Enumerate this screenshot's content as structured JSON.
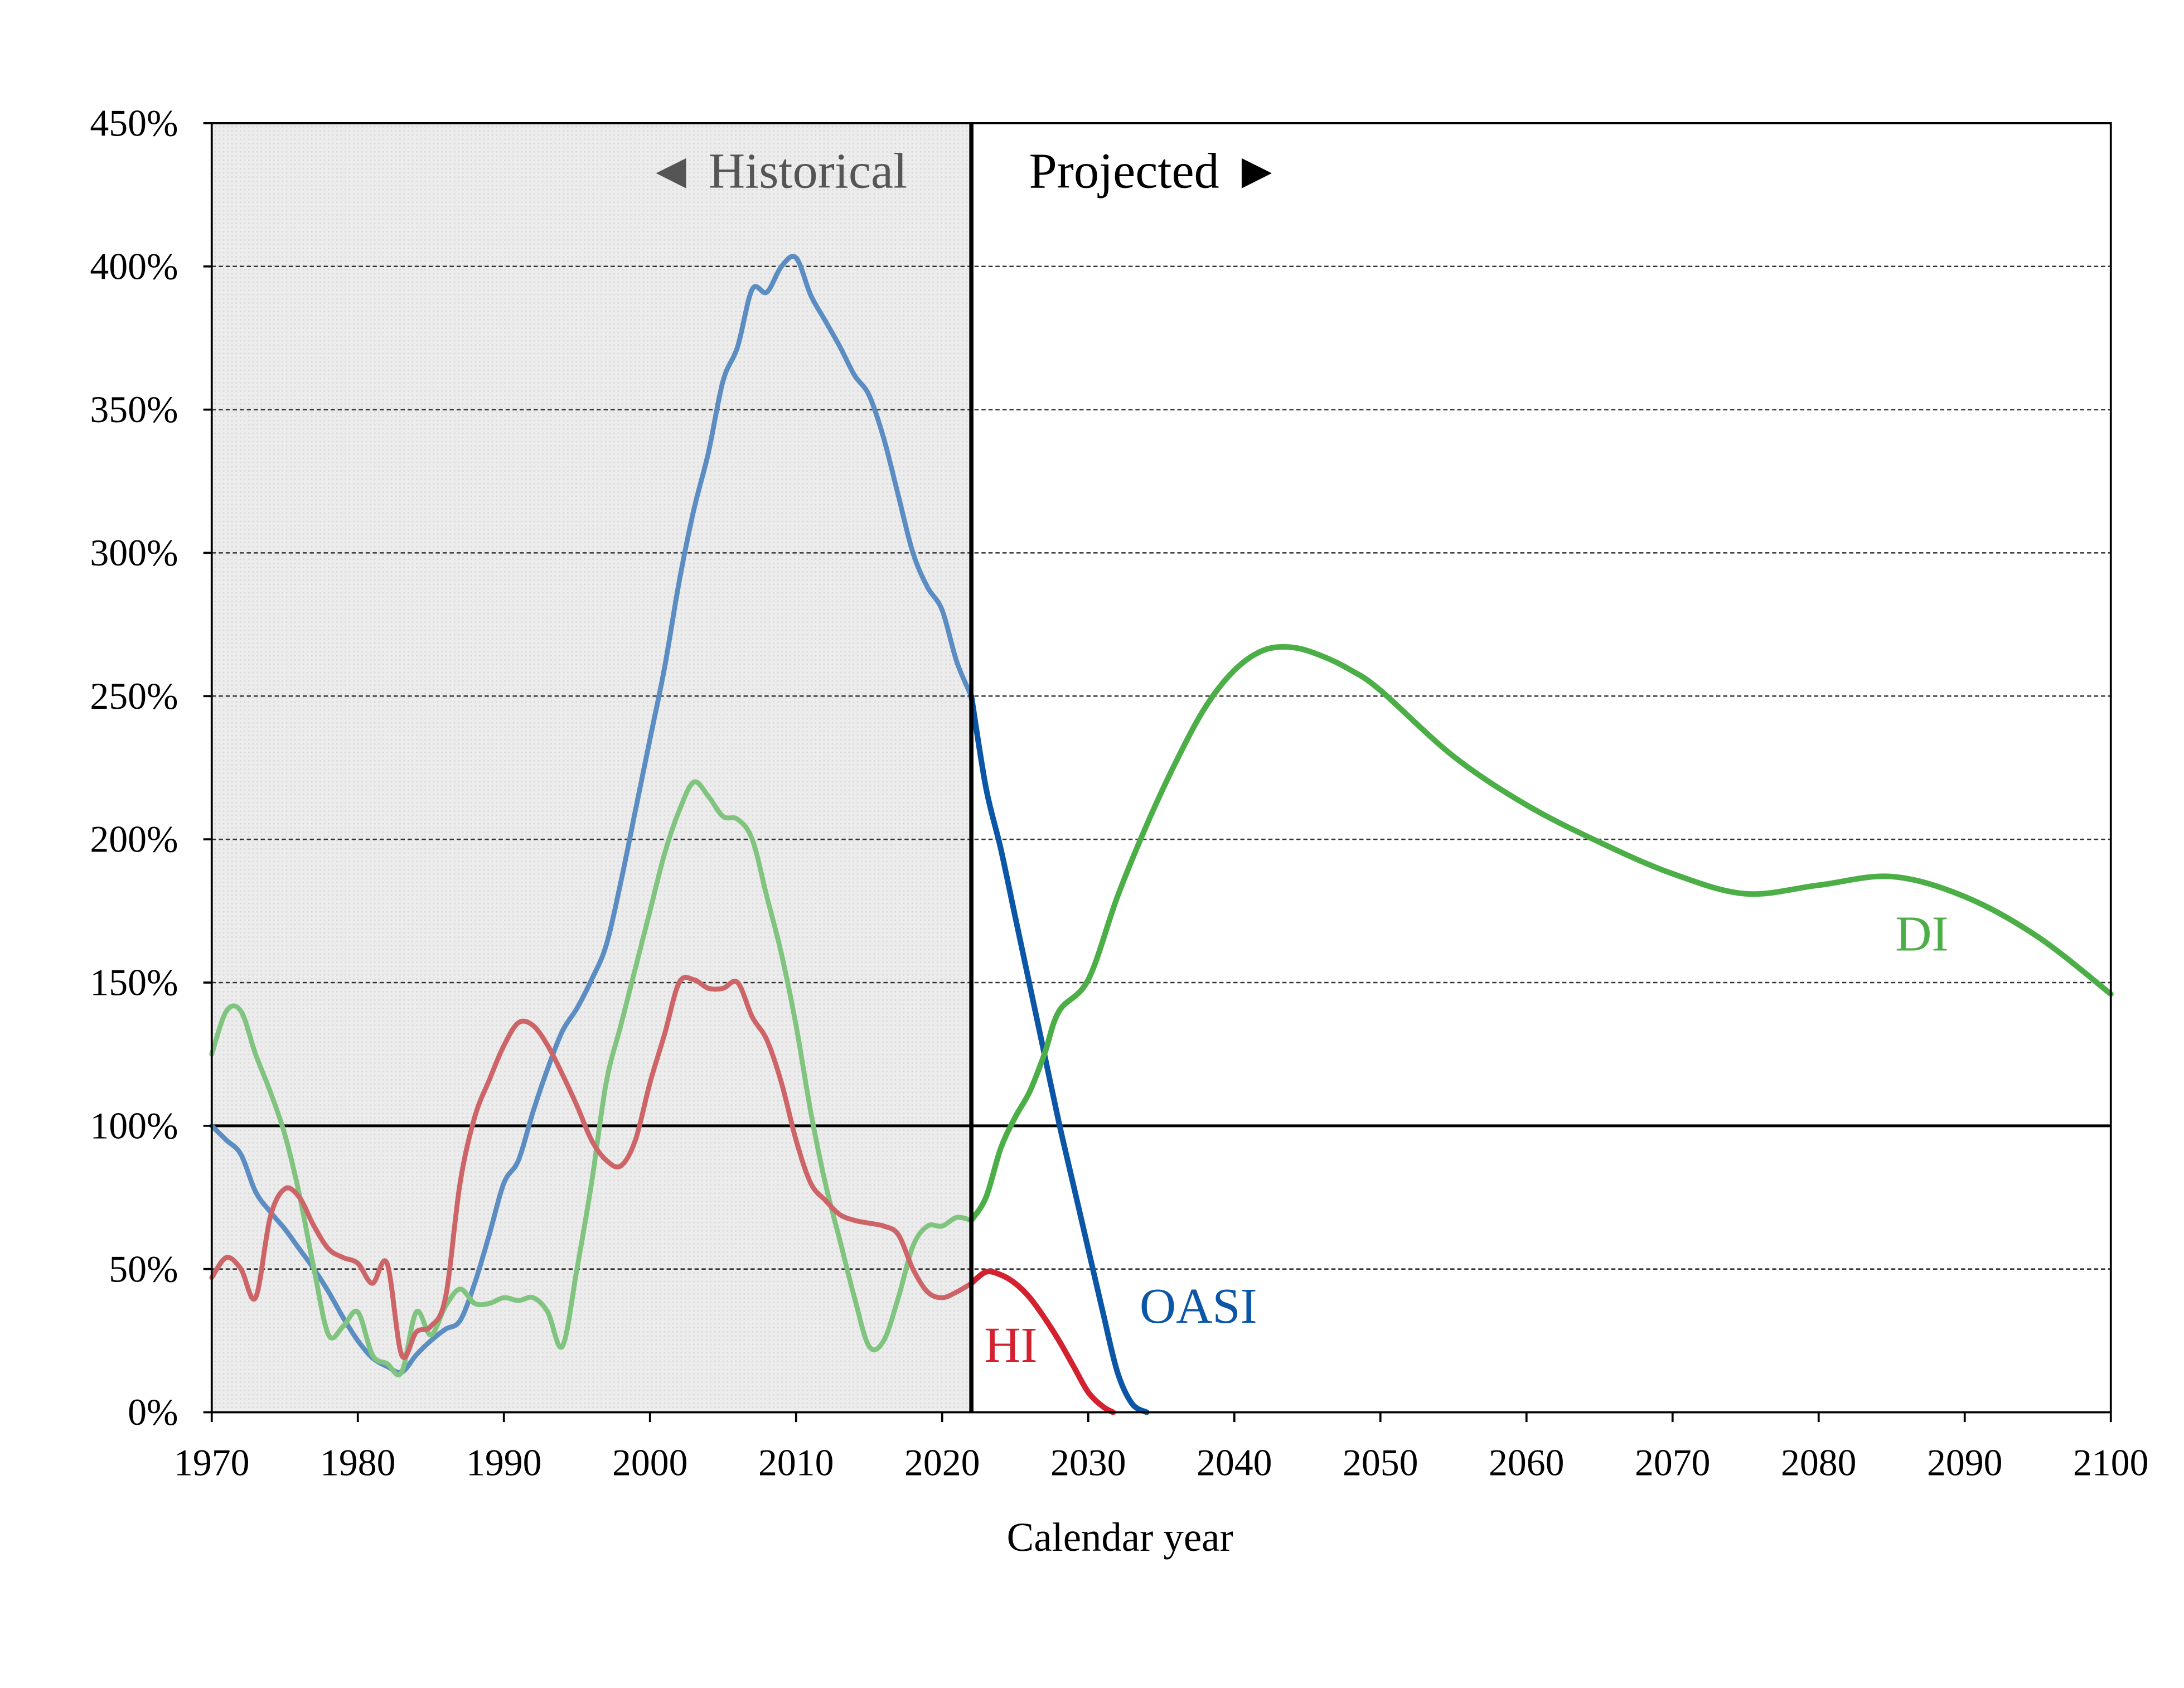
{
  "chart_data": {
    "type": "line",
    "xlabel": "Calendar year",
    "ylabel": "",
    "xlim": [
      1970,
      2100
    ],
    "ylim": [
      0,
      450
    ],
    "x_ticks": [
      "1970",
      "1980",
      "1990",
      "2000",
      "2010",
      "2020",
      "2030",
      "2040",
      "2050",
      "2060",
      "2070",
      "2080",
      "2090",
      "2100"
    ],
    "y_ticks": [
      "0%",
      "50%",
      "100%",
      "150%",
      "200%",
      "250%",
      "300%",
      "350%",
      "400%",
      "450%"
    ],
    "grid": "horizontal dashed",
    "reference_line": 100,
    "regions": {
      "historical_label": "◄ Historical",
      "projected_label": "Projected ►",
      "boundary_year": 2022
    },
    "colors": {
      "OASI_historical": "#5b8dc2",
      "OASI_projected": "#0b56a6",
      "DI_historical": "#80c47f",
      "DI_projected": "#4bae46",
      "HI_historical": "#cd6468",
      "HI_projected": "#d42130",
      "historical_shade": "#ececec"
    },
    "series": [
      {
        "name": "OASI",
        "historical": {
          "x": [
            1970,
            1971,
            1972,
            1973,
            1974,
            1975,
            1976,
            1977,
            1978,
            1979,
            1980,
            1981,
            1982,
            1983,
            1984,
            1985,
            1986,
            1987,
            1988,
            1989,
            1990,
            1991,
            1992,
            1993,
            1994,
            1995,
            1996,
            1997,
            1998,
            1999,
            2000,
            2001,
            2002,
            2003,
            2004,
            2005,
            2006,
            2007,
            2008,
            2009,
            2010,
            2011,
            2012,
            2013,
            2014,
            2015,
            2016,
            2017,
            2018,
            2019,
            2020,
            2021,
            2022
          ],
          "y": [
            100,
            95,
            90,
            77,
            70,
            64,
            57,
            50,
            42,
            33,
            25,
            19,
            16,
            14,
            20,
            25,
            29,
            32,
            45,
            62,
            80,
            88,
            105,
            120,
            133,
            141,
            151,
            163,
            185,
            210,
            235,
            260,
            290,
            315,
            335,
            360,
            372,
            392,
            391,
            400,
            403,
            390,
            381,
            372,
            362,
            355,
            340,
            320,
            300,
            288,
            280,
            262,
            250
          ]
        },
        "projected": {
          "x": [
            2022,
            2023,
            2024,
            2025,
            2026,
            2027,
            2028,
            2029,
            2030,
            2031,
            2032,
            2033,
            2034
          ],
          "y": [
            250,
            218,
            197,
            173,
            149,
            125,
            101,
            79,
            57,
            35,
            14,
            3,
            0
          ]
        }
      },
      {
        "name": "DI",
        "historical": {
          "x": [
            1970,
            1971,
            1972,
            1973,
            1974,
            1975,
            1976,
            1977,
            1978,
            1979,
            1980,
            1981,
            1982,
            1983,
            1984,
            1985,
            1986,
            1987,
            1988,
            1989,
            1990,
            1991,
            1992,
            1993,
            1994,
            1995,
            1996,
            1997,
            1998,
            1999,
            2000,
            2001,
            2002,
            2003,
            2004,
            2005,
            2006,
            2007,
            2008,
            2009,
            2010,
            2011,
            2012,
            2013,
            2014,
            2015,
            2016,
            2017,
            2018,
            2019,
            2020,
            2021,
            2022
          ],
          "y": [
            125,
            140,
            140,
            125,
            112,
            97,
            76,
            50,
            27,
            30,
            35,
            20,
            17,
            14,
            35,
            27,
            37,
            43,
            38,
            38,
            40,
            39,
            40,
            35,
            23,
            50,
            80,
            115,
            135,
            155,
            175,
            195,
            210,
            220,
            215,
            208,
            207,
            200,
            180,
            160,
            135,
            105,
            80,
            60,
            40,
            23,
            25,
            40,
            58,
            65,
            65,
            68,
            67
          ]
        },
        "projected": {
          "x": [
            2022,
            2023,
            2024,
            2025,
            2026,
            2027,
            2028,
            2030,
            2032,
            2034,
            2036,
            2038,
            2040,
            2042,
            2044,
            2046,
            2048,
            2050,
            2055,
            2060,
            2065,
            2070,
            2075,
            2080,
            2085,
            2090,
            2095,
            2100
          ],
          "y": [
            67,
            75,
            92,
            103,
            112,
            125,
            140,
            151,
            180,
            205,
            227,
            246,
            259,
            266,
            267,
            264,
            259,
            252,
            229,
            212,
            199,
            188,
            181,
            184,
            187,
            180,
            166,
            146
          ]
        }
      },
      {
        "name": "HI",
        "historical": {
          "x": [
            1970,
            1971,
            1972,
            1973,
            1974,
            1975,
            1976,
            1977,
            1978,
            1979,
            1980,
            1981,
            1982,
            1983,
            1984,
            1985,
            1986,
            1987,
            1988,
            1989,
            1990,
            1991,
            1992,
            1993,
            1994,
            1995,
            1996,
            1997,
            1998,
            1999,
            2000,
            2001,
            2002,
            2003,
            2004,
            2005,
            2006,
            2007,
            2008,
            2009,
            2010,
            2011,
            2012,
            2013,
            2014,
            2015,
            2016,
            2017,
            2018,
            2019,
            2020,
            2021,
            2022
          ],
          "y": [
            47,
            54,
            50,
            40,
            68,
            78,
            75,
            65,
            57,
            54,
            52,
            45,
            52,
            20,
            28,
            30,
            40,
            80,
            103,
            116,
            128,
            136,
            135,
            128,
            118,
            107,
            95,
            88,
            86,
            95,
            115,
            132,
            150,
            151,
            148,
            148,
            150,
            138,
            130,
            115,
            95,
            80,
            74,
            69,
            67,
            66,
            65,
            62,
            50,
            42,
            40,
            42,
            45
          ]
        },
        "projected": {
          "x": [
            2022,
            2023,
            2024,
            2025,
            2026,
            2027,
            2028,
            2029,
            2030,
            2031,
            2031.7
          ],
          "y": [
            45,
            49,
            48,
            45,
            40,
            33,
            25,
            16,
            7,
            2,
            0
          ]
        }
      }
    ],
    "annotations": {
      "OASI": "OASI",
      "DI": "DI",
      "HI": "HI"
    }
  }
}
